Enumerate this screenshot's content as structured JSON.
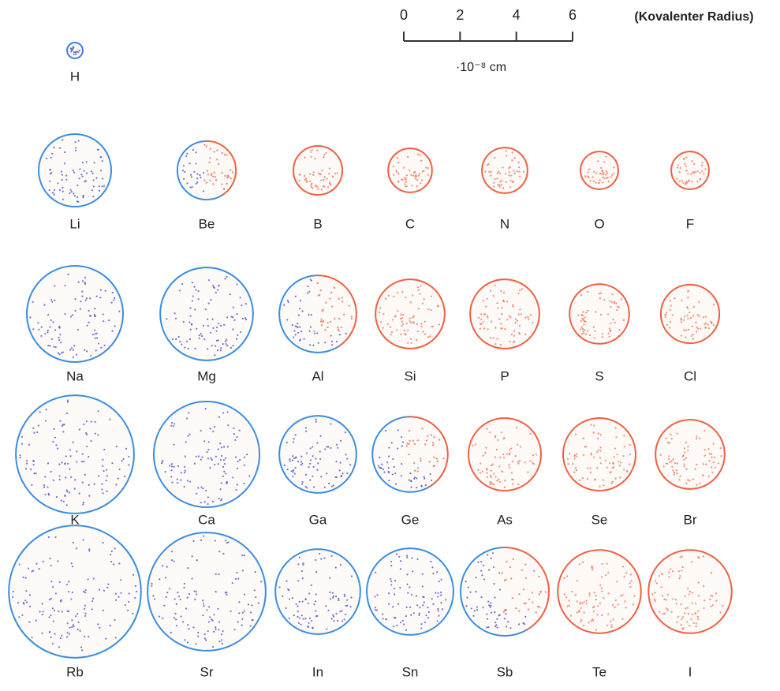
{
  "scale": {
    "xlim": [
      0,
      6
    ],
    "ticks": [
      0,
      2,
      4,
      6
    ],
    "unit": "·10⁻⁸ cm",
    "caption": "(Kovalenter Radius)"
  },
  "rows": [
    [
      {
        "symbol": "H",
        "radius": 0.28,
        "color": "#3a7fe0"
      }
    ],
    [
      {
        "symbol": "Li",
        "radius": 1.29,
        "color": "#3a8ee0"
      },
      {
        "symbol": "Be",
        "radius": 1.04,
        "color": [
          "#3a8ee0",
          "#f06040"
        ]
      },
      {
        "symbol": "B",
        "radius": 0.87,
        "color": "#f06040"
      },
      {
        "symbol": "C",
        "radius": 0.78,
        "color": "#f06040"
      },
      {
        "symbol": "N",
        "radius": 0.81,
        "color": "#f06040"
      },
      {
        "symbol": "O",
        "radius": 0.67,
        "color": "#f06040"
      },
      {
        "symbol": "F",
        "radius": 0.67,
        "color": "#f06040"
      }
    ],
    [
      {
        "symbol": "Na",
        "radius": 1.71,
        "color": "#3a8ee0"
      },
      {
        "symbol": "Mg",
        "radius": 1.65,
        "color": "#3a8ee0"
      },
      {
        "symbol": "Al",
        "radius": 1.37,
        "color": [
          "#3a8ee0",
          "#f06040"
        ]
      },
      {
        "symbol": "Si",
        "radius": 1.23,
        "color": "#f06040"
      },
      {
        "symbol": "P",
        "radius": 1.23,
        "color": "#f06040"
      },
      {
        "symbol": "S",
        "radius": 1.06,
        "color": "#f06040"
      },
      {
        "symbol": "Cl",
        "radius": 1.04,
        "color": "#f06040"
      }
    ],
    [
      {
        "symbol": "K",
        "radius": 2.1,
        "color": "#3a8ee0"
      },
      {
        "symbol": "Ca",
        "radius": 1.88,
        "color": "#3a8ee0"
      },
      {
        "symbol": "Ga",
        "radius": 1.37,
        "color": "#3a8ee0"
      },
      {
        "symbol": "Ge",
        "radius": 1.34,
        "color": [
          "#3a8ee0",
          "#f06040"
        ]
      },
      {
        "symbol": "As",
        "radius": 1.29,
        "color": "#f06040"
      },
      {
        "symbol": "Se",
        "radius": 1.29,
        "color": "#f06040"
      },
      {
        "symbol": "Br",
        "radius": 1.23,
        "color": "#f06040"
      }
    ],
    [
      {
        "symbol": "Rb",
        "radius": 2.35,
        "color": "#3a8ee0"
      },
      {
        "symbol": "Sr",
        "radius": 2.1,
        "color": "#3a8ee0"
      },
      {
        "symbol": "In",
        "radius": 1.51,
        "color": "#3a8ee0"
      },
      {
        "symbol": "Sn",
        "radius": 1.54,
        "color": "#3a8ee0"
      },
      {
        "symbol": "Sb",
        "radius": 1.57,
        "color": [
          "#3a8ee0",
          "#f06040"
        ]
      },
      {
        "symbol": "Te",
        "radius": 1.48,
        "color": "#f06040"
      },
      {
        "symbol": "I",
        "radius": 1.48,
        "color": "#f06040"
      }
    ]
  ]
}
